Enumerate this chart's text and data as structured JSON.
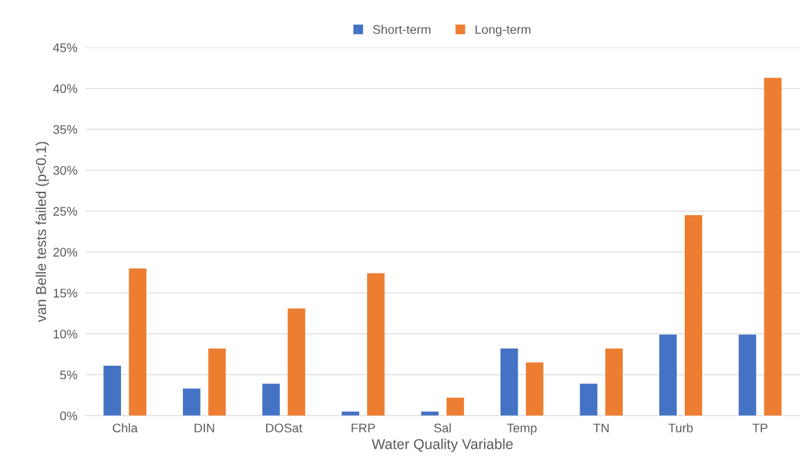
{
  "chart_data": {
    "type": "bar",
    "xlabel": "Water Quality Variable",
    "ylabel": "van Belle tests failed (p<0.1)",
    "categories": [
      "Chla",
      "DIN",
      "DOSat",
      "FRP",
      "Sal",
      "Temp",
      "TN",
      "Turb",
      "TP"
    ],
    "series": [
      {
        "name": "Short-term",
        "color": "#4472c4",
        "values": [
          6.1,
          3.3,
          3.9,
          0.5,
          0.5,
          8.2,
          3.9,
          9.9,
          9.9
        ]
      },
      {
        "name": "Long-term",
        "color": "#ed7d31",
        "values": [
          18.0,
          8.2,
          13.1,
          17.4,
          2.2,
          6.5,
          8.2,
          24.5,
          41.3
        ]
      }
    ],
    "ylim": [
      0,
      45
    ],
    "yticks": [
      {
        "value": 0,
        "label": "0%"
      },
      {
        "value": 5,
        "label": "5%"
      },
      {
        "value": 10,
        "label": "10%"
      },
      {
        "value": 15,
        "label": "15%"
      },
      {
        "value": 20,
        "label": "20%"
      },
      {
        "value": 25,
        "label": "25%"
      },
      {
        "value": 30,
        "label": "30%"
      },
      {
        "value": 35,
        "label": "35%"
      },
      {
        "value": 40,
        "label": "40%"
      },
      {
        "value": 45,
        "label": "45%"
      }
    ],
    "grid": "y",
    "legend": "top"
  }
}
